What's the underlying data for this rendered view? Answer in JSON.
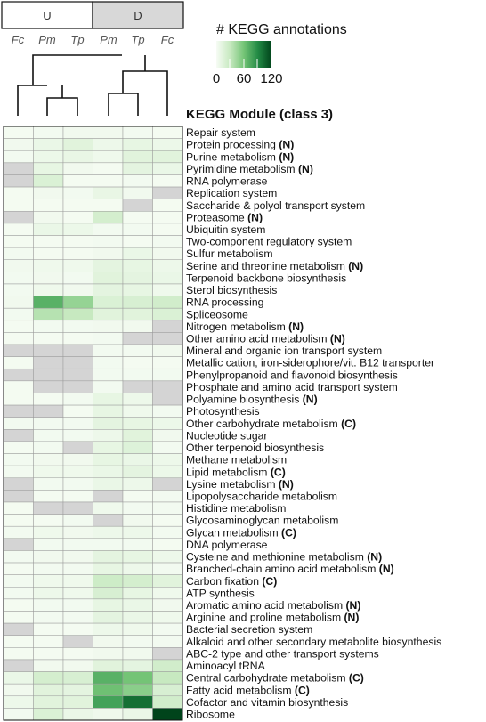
{
  "chart_data": {
    "type": "heatmap",
    "title": "",
    "groups": [
      {
        "label": "U",
        "columns": [
          "Fc",
          "Pm",
          "Tp"
        ],
        "background": "#ffffff"
      },
      {
        "label": "D",
        "columns": [
          "Pm",
          "Tp",
          "Fc"
        ],
        "background": "#d8d8d8"
      }
    ],
    "columns": [
      "Fc",
      "Pm",
      "Tp",
      "Pm",
      "Tp",
      "Fc"
    ],
    "row_header": "KEGG Module (class 3)",
    "legend": {
      "title": "# KEGG annotations",
      "ticks": [
        "0",
        "60",
        "120"
      ],
      "min": 0,
      "max": 120,
      "colors": [
        "#f7fcf5",
        "#c7e9c0",
        "#74c476",
        "#238b45",
        "#00441b"
      ],
      "placement": "top-right"
    },
    "missing_color": "#d4d4d4",
    "rows": [
      {
        "name": "Repair system",
        "suffix": "",
        "values": [
          2,
          3,
          4,
          4,
          3,
          2
        ]
      },
      {
        "name": "Protein processing",
        "suffix": "(N)",
        "values": [
          4,
          8,
          14,
          6,
          10,
          7
        ]
      },
      {
        "name": "Purine metabolism",
        "suffix": "(N)",
        "values": [
          3,
          7,
          9,
          5,
          14,
          14
        ]
      },
      {
        "name": "Pyrimidine metabolism",
        "suffix": "(N)",
        "values": [
          null,
          10,
          4,
          2,
          12,
          8
        ]
      },
      {
        "name": "RNA polymerase",
        "suffix": "",
        "values": [
          null,
          18,
          2,
          2,
          3,
          2
        ]
      },
      {
        "name": "Replication system",
        "suffix": "",
        "values": [
          2,
          4,
          3,
          9,
          4,
          null
        ]
      },
      {
        "name": "Saccharide & polyol transport system",
        "suffix": "",
        "values": [
          2,
          2,
          2,
          2,
          null,
          2
        ]
      },
      {
        "name": "Proteasome",
        "suffix": "(N)",
        "values": [
          null,
          4,
          2,
          22,
          2,
          2
        ]
      },
      {
        "name": "Ubiquitin system",
        "suffix": "",
        "values": [
          2,
          8,
          7,
          3,
          3,
          2
        ]
      },
      {
        "name": "Two-component regulatory system",
        "suffix": "",
        "values": [
          2,
          2,
          2,
          3,
          2,
          3
        ]
      },
      {
        "name": "Sulfur metabolism",
        "suffix": "",
        "values": [
          3,
          2,
          2,
          4,
          8,
          4
        ]
      },
      {
        "name": "Serine and threonine metabolism",
        "suffix": "(N)",
        "values": [
          4,
          5,
          5,
          12,
          10,
          6
        ]
      },
      {
        "name": "Terpenoid backbone biosynthesis",
        "suffix": "",
        "values": [
          3,
          4,
          3,
          14,
          12,
          8
        ]
      },
      {
        "name": "Sterol biosynthesis",
        "suffix": "",
        "values": [
          3,
          5,
          4,
          12,
          10,
          5
        ]
      },
      {
        "name": "RNA processing",
        "suffix": "",
        "values": [
          4,
          70,
          48,
          18,
          20,
          24
        ]
      },
      {
        "name": "Spliceosome",
        "suffix": "",
        "values": [
          3,
          36,
          30,
          14,
          14,
          18
        ]
      },
      {
        "name": "Nitrogen metabolism",
        "suffix": "(N)",
        "values": [
          2,
          3,
          3,
          4,
          4,
          null
        ]
      },
      {
        "name": "Other amino acid metabolism",
        "suffix": "(N)",
        "values": [
          2,
          2,
          2,
          3,
          null,
          null
        ]
      },
      {
        "name": "Mineral and organic ion transport system",
        "suffix": "",
        "values": [
          null,
          null,
          null,
          3,
          3,
          4
        ]
      },
      {
        "name": "Metallic cation, iron-siderophore/vit. B12 transporter",
        "suffix": "",
        "values": [
          2,
          null,
          null,
          3,
          2,
          2
        ]
      },
      {
        "name": "Phenylpropanoid and flavonoid biosynthesis",
        "suffix": "",
        "values": [
          null,
          null,
          null,
          3,
          3,
          3
        ]
      },
      {
        "name": "Phosphate and amino acid transport system",
        "suffix": "",
        "values": [
          2,
          null,
          null,
          3,
          null,
          null
        ]
      },
      {
        "name": "Polyamine biosynthesis",
        "suffix": "(N)",
        "values": [
          2,
          2,
          3,
          10,
          6,
          null
        ]
      },
      {
        "name": "Photosynthesis",
        "suffix": "",
        "values": [
          null,
          null,
          2,
          10,
          5,
          3
        ]
      },
      {
        "name": "Other carbohydrate metabolism",
        "suffix": "(C)",
        "values": [
          3,
          3,
          3,
          12,
          10,
          7
        ]
      },
      {
        "name": "Nucleotide sugar",
        "suffix": "",
        "values": [
          null,
          3,
          3,
          6,
          14,
          4
        ]
      },
      {
        "name": "Other terpenoid biosynthesis",
        "suffix": "",
        "values": [
          2,
          3,
          null,
          10,
          16,
          3
        ]
      },
      {
        "name": "Methane metabolism",
        "suffix": "",
        "values": [
          3,
          4,
          4,
          10,
          8,
          6
        ]
      },
      {
        "name": "Lipid metabolism",
        "suffix": "(C)",
        "values": [
          3,
          5,
          5,
          8,
          12,
          7
        ]
      },
      {
        "name": "Lysine metabolism",
        "suffix": "(N)",
        "values": [
          null,
          3,
          3,
          8,
          6,
          null
        ]
      },
      {
        "name": "Lipopolysaccharide metabolism",
        "suffix": "",
        "values": [
          null,
          2,
          2,
          null,
          2,
          3
        ]
      },
      {
        "name": "Histidine metabolism",
        "suffix": "",
        "values": [
          2,
          null,
          null,
          5,
          3,
          3
        ]
      },
      {
        "name": "Glycosaminoglycan metabolism",
        "suffix": "",
        "values": [
          2,
          2,
          3,
          null,
          4,
          2
        ]
      },
      {
        "name": "Glycan metabolism",
        "suffix": "(C)",
        "values": [
          3,
          5,
          4,
          6,
          6,
          3
        ]
      },
      {
        "name": "DNA polymerase",
        "suffix": "",
        "values": [
          null,
          3,
          3,
          3,
          3,
          2
        ]
      },
      {
        "name": "Cysteine and methionine metabolism",
        "suffix": "(N)",
        "values": [
          3,
          4,
          4,
          12,
          10,
          6
        ]
      },
      {
        "name": "Branched-chain amino acid metabolism",
        "suffix": "(N)",
        "values": [
          2,
          3,
          3,
          10,
          6,
          3
        ]
      },
      {
        "name": "Carbon fixation",
        "suffix": "(C)",
        "values": [
          3,
          5,
          5,
          26,
          22,
          14
        ]
      },
      {
        "name": "ATP synthesis",
        "suffix": "",
        "values": [
          3,
          6,
          5,
          20,
          10,
          5
        ]
      },
      {
        "name": "Aromatic amino acid metabolism",
        "suffix": "(N)",
        "values": [
          2,
          3,
          3,
          10,
          8,
          4
        ]
      },
      {
        "name": "Arginine and proline metabolism",
        "suffix": "(N)",
        "values": [
          2,
          3,
          3,
          12,
          8,
          5
        ]
      },
      {
        "name": "Bacterial secretion system",
        "suffix": "",
        "values": [
          null,
          2,
          2,
          6,
          5,
          3
        ]
      },
      {
        "name": "Alkaloid and other secondary metabolite biosynthesis",
        "suffix": "",
        "values": [
          2,
          2,
          null,
          4,
          3,
          3
        ]
      },
      {
        "name": "ABC-2 type and other transport systems",
        "suffix": "",
        "values": [
          2,
          2,
          2,
          4,
          4,
          null
        ]
      },
      {
        "name": "Aminoacyl tRNA",
        "suffix": "",
        "values": [
          null,
          4,
          4,
          14,
          12,
          24
        ]
      },
      {
        "name": "Central carbohydrate metabolism",
        "suffix": "(C)",
        "values": [
          8,
          22,
          20,
          70,
          60,
          30
        ]
      },
      {
        "name": "Fatty acid metabolism",
        "suffix": "(C)",
        "values": [
          4,
          14,
          12,
          62,
          52,
          20
        ]
      },
      {
        "name": "Cofactor and vitamin biosynthesis",
        "suffix": "",
        "values": [
          6,
          14,
          14,
          78,
          102,
          24
        ]
      },
      {
        "name": "Ribosome",
        "suffix": "",
        "values": [
          3,
          18,
          8,
          5,
          8,
          124
        ]
      }
    ]
  }
}
